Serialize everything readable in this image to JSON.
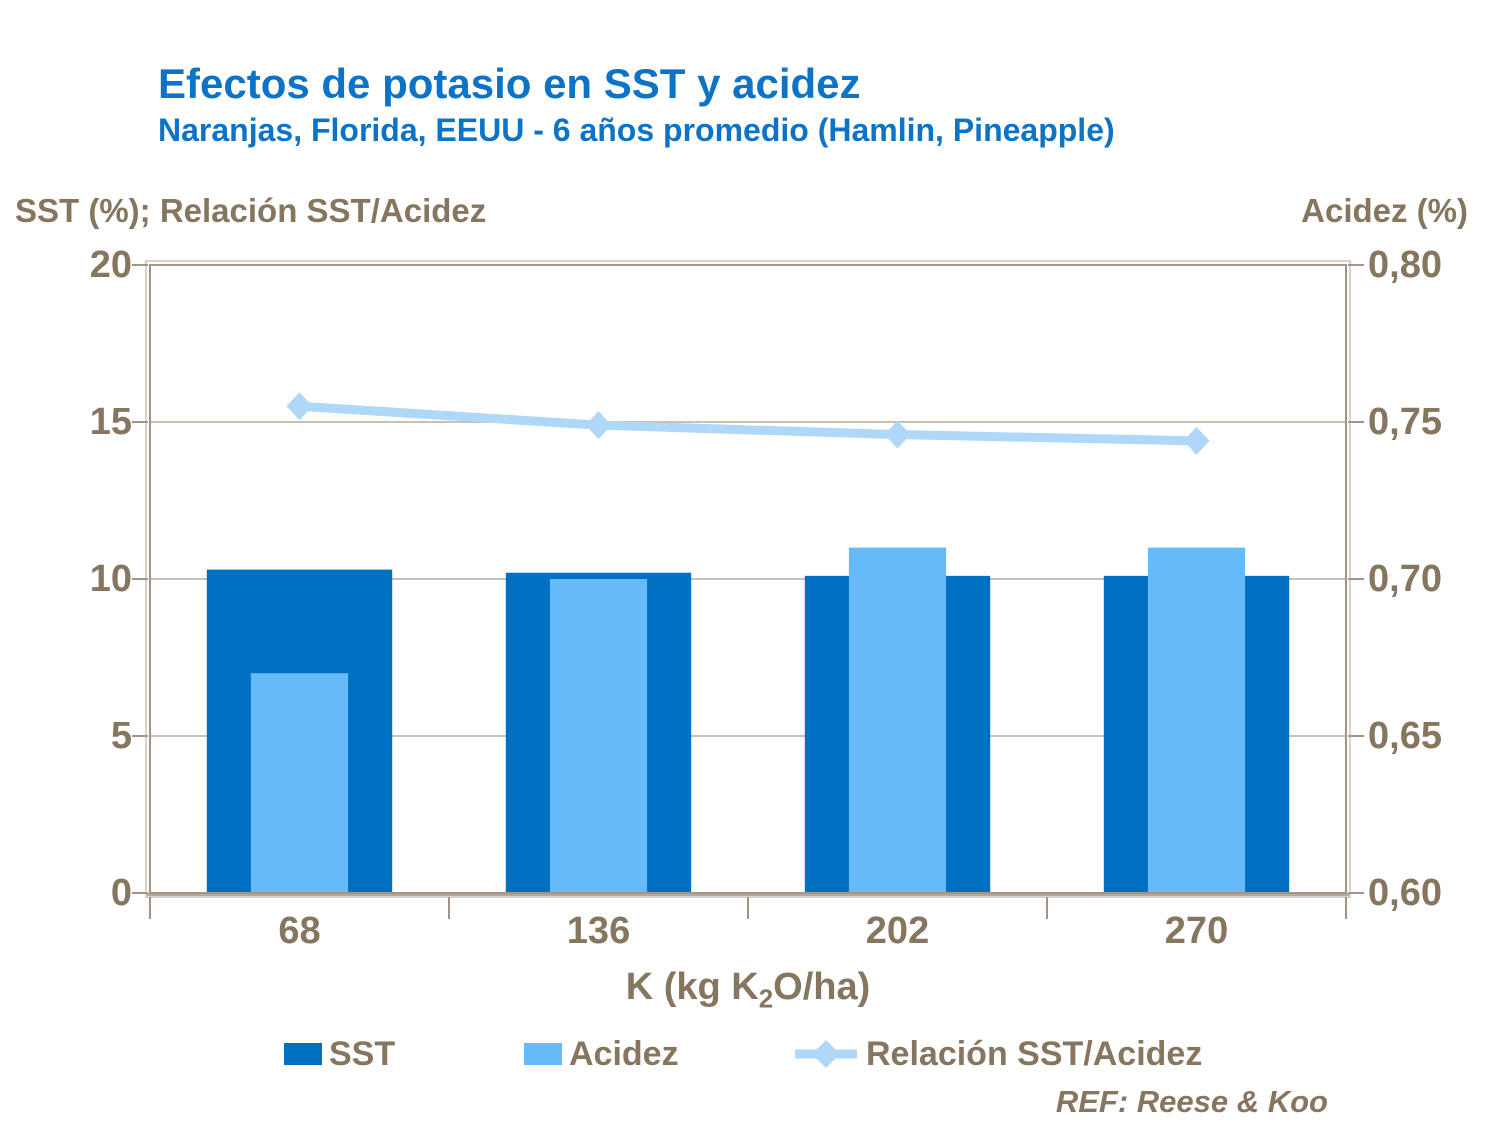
{
  "title": "Efectos de potasio en SST y acidez",
  "subtitle": "Naranjas, Florida, EEUU - 6 años promedio (Hamlin, Pineapple)",
  "footnote": "REF: Reese & Koo",
  "colors": {
    "title_blue": "#0d73c6",
    "text_brown": "#86765f",
    "sst_bar": "#0071c2",
    "acidez_bar": "#67baf9",
    "ratio_line": "#aed7f8",
    "gridline": "#cabfb3",
    "axis_line": "#a39488",
    "frame_light": "#d7d1ca",
    "axis_band": "#b5a99d",
    "background": "#ffffff"
  },
  "x_axis_title": {
    "prefix": "K (kg K",
    "sub": "2",
    "suffix": "O/ha)"
  },
  "chart_data": {
    "type": "combo-bar-line",
    "title": "Efectos de potasio en SST y acidez",
    "subtitle": "Naranjas, Florida, EEUU - 6 años promedio (Hamlin, Pineapple)",
    "categories": [
      "68",
      "136",
      "202",
      "270"
    ],
    "series": [
      {
        "name": "SST",
        "type": "bar",
        "axis": "left",
        "values": [
          10.3,
          10.2,
          10.1,
          10.1
        ]
      },
      {
        "name": "Acidez",
        "type": "bar",
        "axis": "right",
        "values": [
          0.67,
          0.7,
          0.71,
          0.71
        ]
      },
      {
        "name": "Relación SST/Acidez",
        "type": "line",
        "axis": "left",
        "values": [
          15.5,
          14.9,
          14.6,
          14.4
        ]
      }
    ],
    "left_axis": {
      "title": "SST (%); Relación SST/Acidez",
      "min": 0,
      "max": 20,
      "tick_values": [
        20,
        15,
        10,
        5,
        0
      ],
      "tick_labels": [
        "20",
        "15",
        "10",
        "5",
        "0"
      ]
    },
    "right_axis": {
      "title": "Acidez (%)",
      "min": 0.6,
      "max": 0.8,
      "tick_values": [
        0.8,
        0.75,
        0.7,
        0.65,
        0.6
      ],
      "tick_labels": [
        "0,80",
        "0,75",
        "0,70",
        "0,65",
        "0,60"
      ]
    },
    "x_axis": {
      "title": "K (kg K2O/ha)"
    },
    "grid": "horizontal",
    "legend_position": "bottom",
    "footnote": "REF: Reese & Koo"
  }
}
